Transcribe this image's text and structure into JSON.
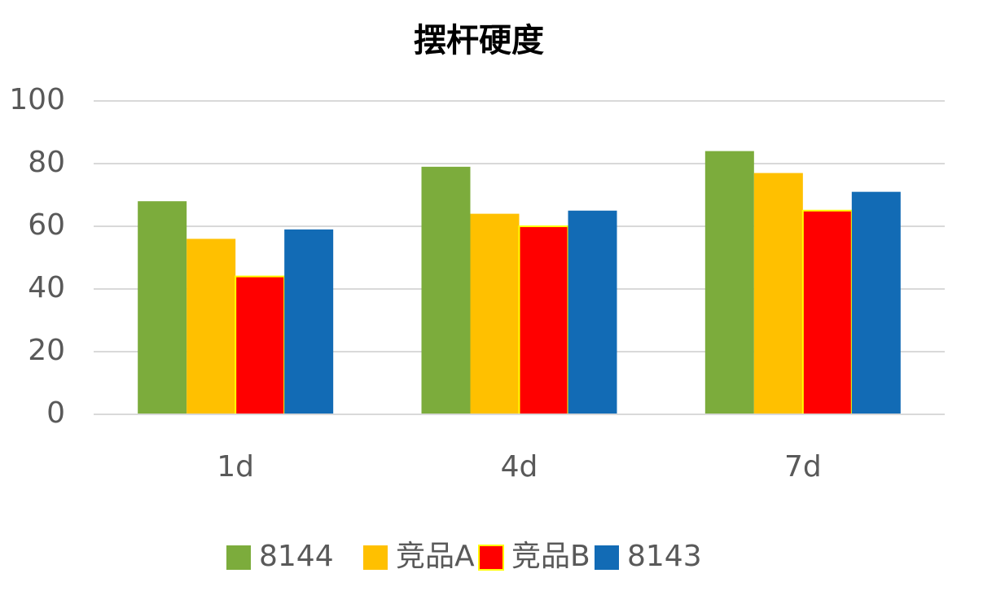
{
  "chart_data": {
    "type": "bar",
    "title": "摆杆硬度",
    "categories": [
      "1d",
      "4d",
      "7d"
    ],
    "series": [
      {
        "name": "8144",
        "color": "#7cac3c",
        "values": [
          68,
          79,
          84
        ]
      },
      {
        "name": "竞品A",
        "color": "#ffc000",
        "values": [
          56,
          64,
          77
        ]
      },
      {
        "name": "竞品B",
        "color": "#ff0000",
        "edgecolor": "#ffff00",
        "values": [
          44,
          60,
          65
        ]
      },
      {
        "name": "8143",
        "color": "#126bb5",
        "values": [
          59,
          65,
          71
        ]
      }
    ],
    "ylim": [
      0,
      100
    ],
    "yticks": [
      0,
      20,
      40,
      60,
      80,
      100
    ],
    "grid": true,
    "legend": "bottom"
  }
}
